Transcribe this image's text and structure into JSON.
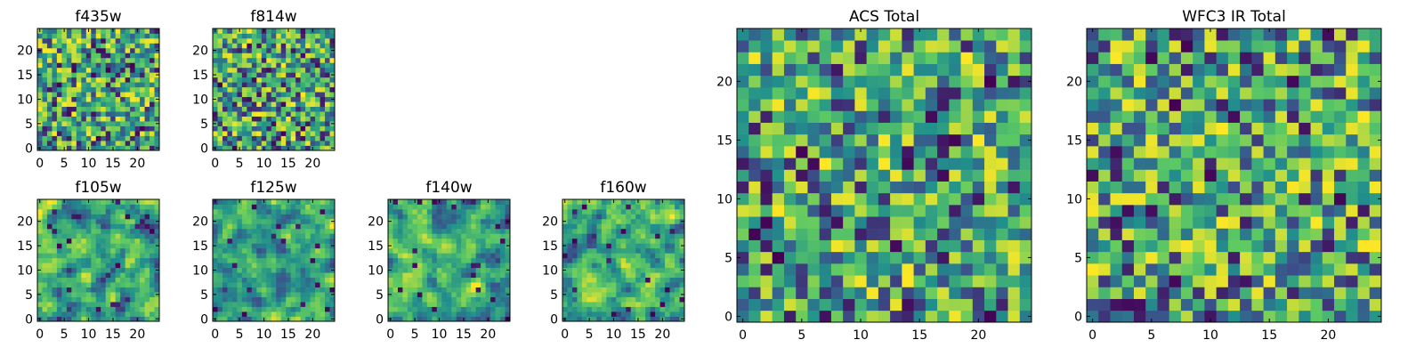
{
  "chart_data": [
    {
      "type": "heatmap",
      "title": "f435w",
      "grid_size": 25,
      "xticks": [
        0,
        5,
        10,
        15,
        20
      ],
      "yticks": [
        0,
        5,
        10,
        15,
        20
      ],
      "xlim": [
        0,
        25
      ],
      "ylim": [
        0,
        25
      ],
      "seed": 11,
      "smooth": 0
    },
    {
      "type": "heatmap",
      "title": "f814w",
      "grid_size": 25,
      "xticks": [
        0,
        5,
        10,
        15,
        20
      ],
      "yticks": [
        0,
        5,
        10,
        15,
        20
      ],
      "xlim": [
        0,
        25
      ],
      "ylim": [
        0,
        25
      ],
      "seed": 23,
      "smooth": 0
    },
    {
      "type": "heatmap",
      "title": "f105w",
      "grid_size": 25,
      "xticks": [
        0,
        5,
        10,
        15,
        20
      ],
      "yticks": [
        0,
        5,
        10,
        15,
        20
      ],
      "xlim": [
        0,
        25
      ],
      "ylim": [
        0,
        25
      ],
      "seed": 37,
      "smooth": 1
    },
    {
      "type": "heatmap",
      "title": "f125w",
      "grid_size": 25,
      "xticks": [
        0,
        5,
        10,
        15,
        20
      ],
      "yticks": [
        0,
        5,
        10,
        15,
        20
      ],
      "xlim": [
        0,
        25
      ],
      "ylim": [
        0,
        25
      ],
      "seed": 41,
      "smooth": 1
    },
    {
      "type": "heatmap",
      "title": "f140w",
      "grid_size": 25,
      "xticks": [
        0,
        5,
        10,
        15,
        20
      ],
      "yticks": [
        0,
        5,
        10,
        15,
        20
      ],
      "xlim": [
        0,
        25
      ],
      "ylim": [
        0,
        25
      ],
      "seed": 53,
      "smooth": 1
    },
    {
      "type": "heatmap",
      "title": "f160w",
      "grid_size": 25,
      "xticks": [
        0,
        5,
        10,
        15,
        20
      ],
      "yticks": [
        0,
        5,
        10,
        15,
        20
      ],
      "xlim": [
        0,
        25
      ],
      "ylim": [
        0,
        25
      ],
      "seed": 67,
      "smooth": 1
    },
    {
      "type": "heatmap",
      "title": "ACS Total",
      "grid_size": 25,
      "xticks": [
        0,
        5,
        10,
        15,
        20
      ],
      "yticks": [
        0,
        5,
        10,
        15,
        20
      ],
      "xlim": [
        0,
        25
      ],
      "ylim": [
        0,
        25
      ],
      "seed": 79,
      "smooth": 0
    },
    {
      "type": "heatmap",
      "title": "WFC3 IR Total",
      "grid_size": 25,
      "xticks": [
        0,
        5,
        10,
        15,
        20
      ],
      "yticks": [
        0,
        5,
        10,
        15,
        20
      ],
      "xlim": [
        0,
        25
      ],
      "ylim": [
        0,
        25
      ],
      "seed": 97,
      "smooth": 0
    }
  ],
  "colormap": [
    "#440154",
    "#3b528b",
    "#21908c",
    "#5dc963",
    "#fde725"
  ],
  "frame_color": "#000000",
  "background_color": "#ffffff"
}
